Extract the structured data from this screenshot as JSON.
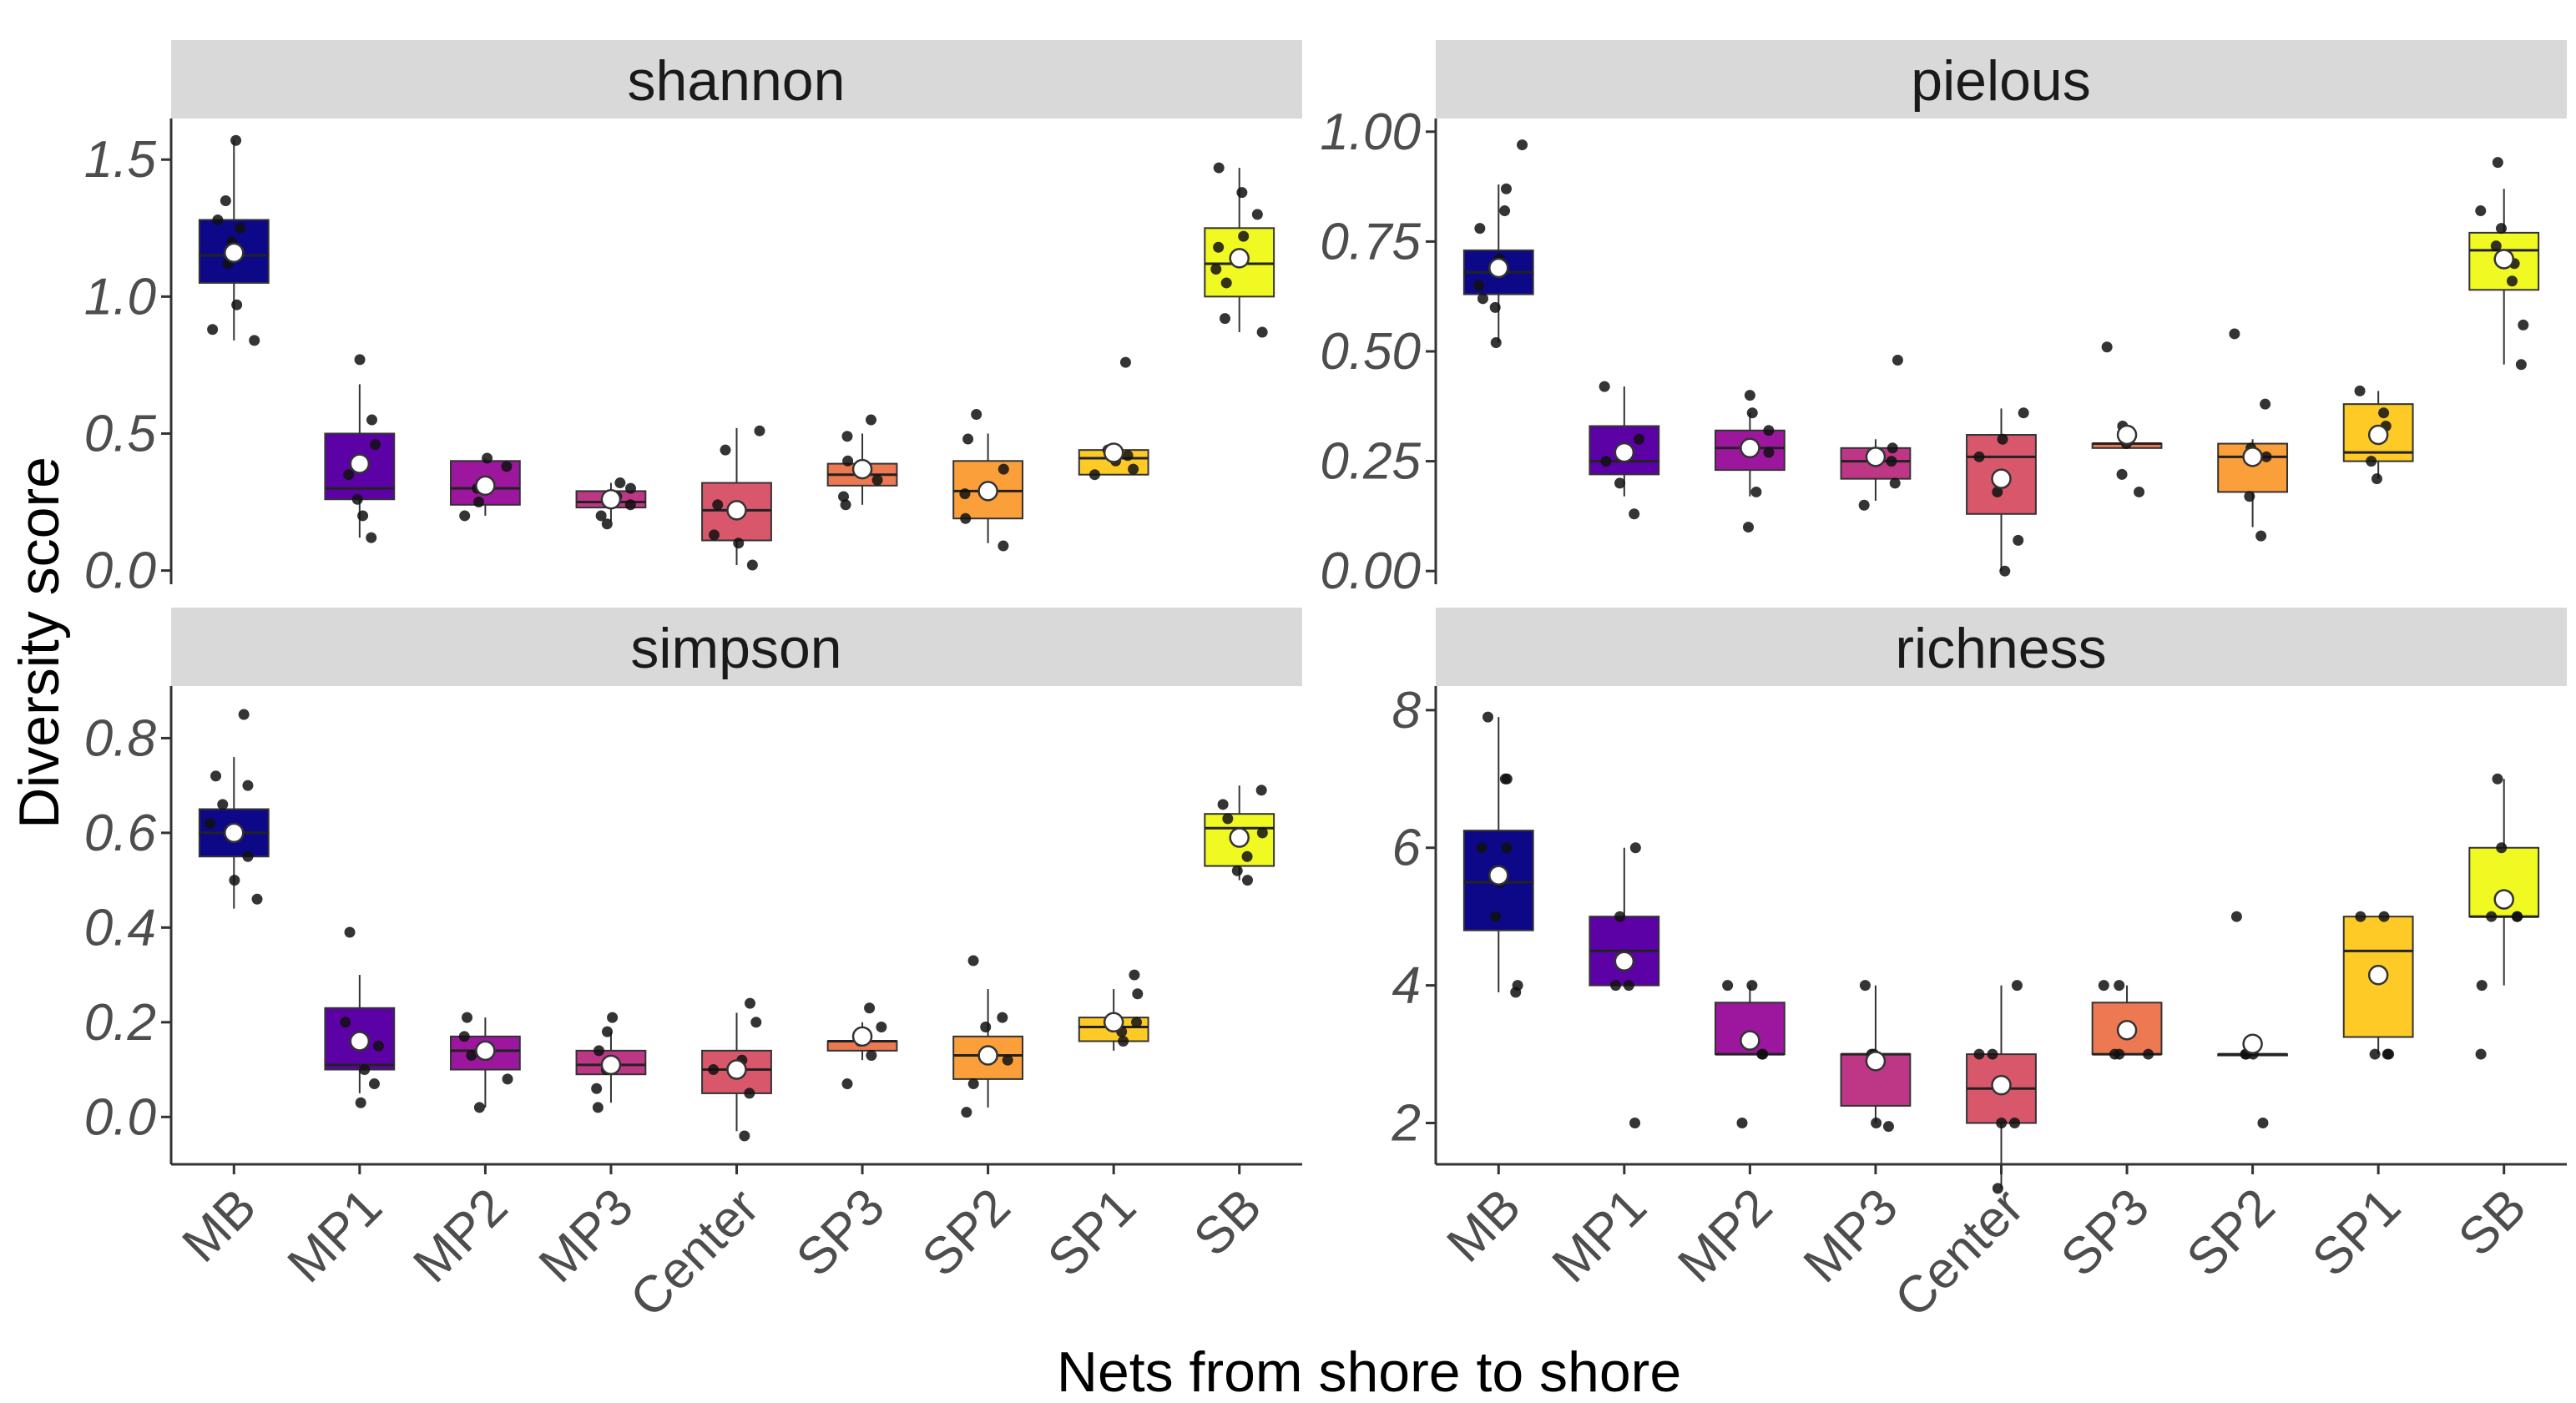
{
  "chart_data": {
    "type": "boxplot",
    "layout": "2x2 facet grid",
    "xlabel": "Nets from shore to shore",
    "ylabel": "Diversity score",
    "categories": [
      "MB",
      "MP1",
      "MP2",
      "MP3",
      "Center",
      "SP3",
      "SP2",
      "SP1",
      "SB"
    ],
    "colors": [
      "#0d0887",
      "#5c01a6",
      "#9c179e",
      "#bd3786",
      "#d8576b",
      "#ed7953",
      "#fb9f3a",
      "#fdca26",
      "#f0f921"
    ],
    "panels": [
      {
        "name": "shannon",
        "ylim": [
          -0.05,
          1.65
        ],
        "yticks": [
          0.0,
          0.5,
          1.0,
          1.5
        ],
        "ytick_labels": [
          "0.0",
          "0.5",
          "1.0",
          "1.5"
        ],
        "boxes": [
          {
            "q1": 1.05,
            "median": 1.15,
            "q3": 1.28,
            "lower": 0.84,
            "upper": 1.57,
            "mean": 1.16,
            "points": [
              0.84,
              0.88,
              0.97,
              1.12,
              1.2,
              1.25,
              1.28,
              1.35,
              1.57
            ]
          },
          {
            "q1": 0.26,
            "median": 0.3,
            "q3": 0.5,
            "lower": 0.12,
            "upper": 0.68,
            "mean": 0.39,
            "points": [
              0.12,
              0.2,
              0.26,
              0.35,
              0.46,
              0.55,
              0.77
            ]
          },
          {
            "q1": 0.24,
            "median": 0.3,
            "q3": 0.4,
            "lower": 0.2,
            "upper": 0.41,
            "mean": 0.31,
            "points": [
              0.2,
              0.25,
              0.3,
              0.38,
              0.41
            ]
          },
          {
            "q1": 0.23,
            "median": 0.25,
            "q3": 0.29,
            "lower": 0.18,
            "upper": 0.32,
            "mean": 0.26,
            "points": [
              0.17,
              0.2,
              0.24,
              0.27,
              0.3,
              0.32
            ]
          },
          {
            "q1": 0.11,
            "median": 0.22,
            "q3": 0.32,
            "lower": 0.02,
            "upper": 0.52,
            "mean": 0.22,
            "points": [
              0.02,
              0.1,
              0.13,
              0.24,
              0.44,
              0.51
            ]
          },
          {
            "q1": 0.31,
            "median": 0.35,
            "q3": 0.39,
            "lower": 0.24,
            "upper": 0.5,
            "mean": 0.37,
            "points": [
              0.24,
              0.27,
              0.33,
              0.4,
              0.49,
              0.55
            ]
          },
          {
            "q1": 0.19,
            "median": 0.29,
            "q3": 0.4,
            "lower": 0.1,
            "upper": 0.5,
            "mean": 0.29,
            "points": [
              0.09,
              0.19,
              0.28,
              0.37,
              0.48,
              0.57
            ]
          },
          {
            "q1": 0.35,
            "median": 0.41,
            "q3": 0.44,
            "lower": 0.35,
            "upper": 0.44,
            "mean": 0.43,
            "points": [
              0.35,
              0.37,
              0.4,
              0.42,
              0.44,
              0.76
            ]
          },
          {
            "q1": 1.0,
            "median": 1.12,
            "q3": 1.25,
            "lower": 0.87,
            "upper": 1.47,
            "mean": 1.14,
            "points": [
              0.87,
              0.92,
              1.05,
              1.1,
              1.18,
              1.22,
              1.3,
              1.38,
              1.47
            ]
          }
        ]
      },
      {
        "name": "pielous",
        "ylim": [
          -0.03,
          1.03
        ],
        "yticks": [
          0.0,
          0.25,
          0.5,
          0.75,
          1.0
        ],
        "ytick_labels": [
          "0.00",
          "0.25",
          "0.50",
          "0.75",
          "1.00"
        ],
        "boxes": [
          {
            "q1": 0.63,
            "median": 0.68,
            "q3": 0.73,
            "lower": 0.52,
            "upper": 0.88,
            "mean": 0.69,
            "points": [
              0.52,
              0.6,
              0.62,
              0.65,
              0.71,
              0.78,
              0.82,
              0.87,
              0.97
            ]
          },
          {
            "q1": 0.22,
            "median": 0.25,
            "q3": 0.33,
            "lower": 0.17,
            "upper": 0.42,
            "mean": 0.27,
            "points": [
              0.13,
              0.2,
              0.25,
              0.3,
              0.42
            ]
          },
          {
            "q1": 0.23,
            "median": 0.28,
            "q3": 0.32,
            "lower": 0.17,
            "upper": 0.36,
            "mean": 0.28,
            "points": [
              0.1,
              0.18,
              0.27,
              0.32,
              0.36,
              0.4
            ]
          },
          {
            "q1": 0.21,
            "median": 0.25,
            "q3": 0.28,
            "lower": 0.16,
            "upper": 0.3,
            "mean": 0.26,
            "points": [
              0.15,
              0.2,
              0.25,
              0.28,
              0.48
            ]
          },
          {
            "q1": 0.13,
            "median": 0.26,
            "q3": 0.31,
            "lower": 0.0,
            "upper": 0.37,
            "mean": 0.21,
            "points": [
              0.0,
              0.07,
              0.18,
              0.26,
              0.3,
              0.36
            ]
          },
          {
            "q1": 0.28,
            "median": 0.29,
            "q3": 0.29,
            "lower": 0.28,
            "upper": 0.29,
            "mean": 0.31,
            "points": [
              0.18,
              0.22,
              0.29,
              0.33,
              0.51
            ]
          },
          {
            "q1": 0.18,
            "median": 0.26,
            "q3": 0.29,
            "lower": 0.1,
            "upper": 0.3,
            "mean": 0.26,
            "points": [
              0.08,
              0.17,
              0.26,
              0.28,
              0.38,
              0.54
            ]
          },
          {
            "q1": 0.25,
            "median": 0.27,
            "q3": 0.38,
            "lower": 0.21,
            "upper": 0.41,
            "mean": 0.31,
            "points": [
              0.21,
              0.25,
              0.33,
              0.36,
              0.41
            ]
          },
          {
            "q1": 0.64,
            "median": 0.73,
            "q3": 0.77,
            "lower": 0.47,
            "upper": 0.87,
            "mean": 0.71,
            "points": [
              0.47,
              0.56,
              0.66,
              0.7,
              0.74,
              0.78,
              0.82,
              0.93
            ]
          }
        ]
      },
      {
        "name": "simpson",
        "ylim": [
          -0.1,
          0.91
        ],
        "yticks": [
          0.0,
          0.2,
          0.4,
          0.6,
          0.8
        ],
        "ytick_labels": [
          "0.0",
          "0.2",
          "0.4",
          "0.6",
          "0.8"
        ],
        "boxes": [
          {
            "q1": 0.55,
            "median": 0.6,
            "q3": 0.65,
            "lower": 0.44,
            "upper": 0.76,
            "mean": 0.6,
            "points": [
              0.46,
              0.5,
              0.55,
              0.62,
              0.66,
              0.7,
              0.72,
              0.85
            ]
          },
          {
            "q1": 0.1,
            "median": 0.11,
            "q3": 0.23,
            "lower": 0.05,
            "upper": 0.3,
            "mean": 0.16,
            "points": [
              0.03,
              0.07,
              0.1,
              0.15,
              0.2,
              0.39
            ]
          },
          {
            "q1": 0.1,
            "median": 0.14,
            "q3": 0.17,
            "lower": 0.02,
            "upper": 0.21,
            "mean": 0.14,
            "points": [
              0.02,
              0.08,
              0.13,
              0.17,
              0.21
            ]
          },
          {
            "q1": 0.09,
            "median": 0.11,
            "q3": 0.14,
            "lower": 0.03,
            "upper": 0.18,
            "mean": 0.11,
            "points": [
              0.02,
              0.06,
              0.1,
              0.14,
              0.18,
              0.21
            ]
          },
          {
            "q1": 0.05,
            "median": 0.1,
            "q3": 0.14,
            "lower": -0.03,
            "upper": 0.22,
            "mean": 0.1,
            "points": [
              -0.04,
              0.05,
              0.1,
              0.12,
              0.2,
              0.24
            ]
          },
          {
            "q1": 0.14,
            "median": 0.16,
            "q3": 0.16,
            "lower": 0.12,
            "upper": 0.2,
            "mean": 0.17,
            "points": [
              0.07,
              0.13,
              0.16,
              0.19,
              0.23
            ]
          },
          {
            "q1": 0.08,
            "median": 0.13,
            "q3": 0.17,
            "lower": 0.02,
            "upper": 0.27,
            "mean": 0.13,
            "points": [
              0.01,
              0.07,
              0.12,
              0.19,
              0.21,
              0.33
            ]
          },
          {
            "q1": 0.16,
            "median": 0.19,
            "q3": 0.21,
            "lower": 0.14,
            "upper": 0.27,
            "mean": 0.2,
            "points": [
              0.16,
              0.18,
              0.2,
              0.26,
              0.3
            ]
          },
          {
            "q1": 0.53,
            "median": 0.61,
            "q3": 0.64,
            "lower": 0.5,
            "upper": 0.7,
            "mean": 0.59,
            "points": [
              0.5,
              0.52,
              0.55,
              0.6,
              0.63,
              0.66,
              0.69
            ]
          }
        ]
      },
      {
        "name": "richness",
        "ylim": [
          1.4,
          8.35
        ],
        "yticks": [
          2,
          4,
          6,
          8
        ],
        "ytick_labels": [
          "2",
          "4",
          "6",
          "8"
        ],
        "boxes": [
          {
            "q1": 4.8,
            "median": 5.5,
            "q3": 6.25,
            "lower": 3.9,
            "upper": 7.9,
            "mean": 5.6,
            "points": [
              3.9,
              4.0,
              5.0,
              5.5,
              6.0,
              6.0,
              7.0,
              7.0,
              7.9
            ]
          },
          {
            "q1": 4.0,
            "median": 4.5,
            "q3": 5.0,
            "lower": 4.0,
            "upper": 6.0,
            "mean": 4.35,
            "points": [
              2.0,
              4.0,
              4.0,
              5.0,
              6.0
            ]
          },
          {
            "q1": 3.0,
            "median": 3.0,
            "q3": 3.75,
            "lower": 3.0,
            "upper": 4.0,
            "mean": 3.2,
            "points": [
              2.0,
              3.0,
              3.0,
              4.0,
              4.0
            ]
          },
          {
            "q1": 2.25,
            "median": 3.0,
            "q3": 3.0,
            "lower": 2.0,
            "upper": 4.0,
            "mean": 2.9,
            "points": [
              1.95,
              2.0,
              3.0,
              3.0,
              4.0
            ]
          },
          {
            "q1": 2.0,
            "median": 2.5,
            "q3": 3.0,
            "lower": 1.05,
            "upper": 4.0,
            "mean": 2.55,
            "points": [
              1.05,
              2.0,
              2.0,
              3.0,
              3.0,
              4.0
            ]
          },
          {
            "q1": 3.0,
            "median": 3.0,
            "q3": 3.75,
            "lower": 3.0,
            "upper": 4.0,
            "mean": 3.35,
            "points": [
              3.0,
              3.0,
              3.0,
              4.0,
              4.0
            ]
          },
          {
            "q1": 3.0,
            "median": 3.0,
            "q3": 3.0,
            "lower": 3.0,
            "upper": 3.0,
            "mean": 3.15,
            "points": [
              2.0,
              3.0,
              3.0,
              3.0,
              5.0
            ]
          },
          {
            "q1": 3.25,
            "median": 4.5,
            "q3": 5.0,
            "lower": 3.0,
            "upper": 5.0,
            "mean": 4.15,
            "points": [
              3.0,
              3.0,
              3.0,
              5.0,
              5.0
            ]
          },
          {
            "q1": 5.0,
            "median": 5.0,
            "q3": 6.0,
            "lower": 4.0,
            "upper": 7.0,
            "mean": 5.25,
            "points": [
              3.0,
              4.0,
              5.0,
              5.0,
              5.0,
              6.0,
              7.0
            ]
          }
        ]
      }
    ]
  }
}
